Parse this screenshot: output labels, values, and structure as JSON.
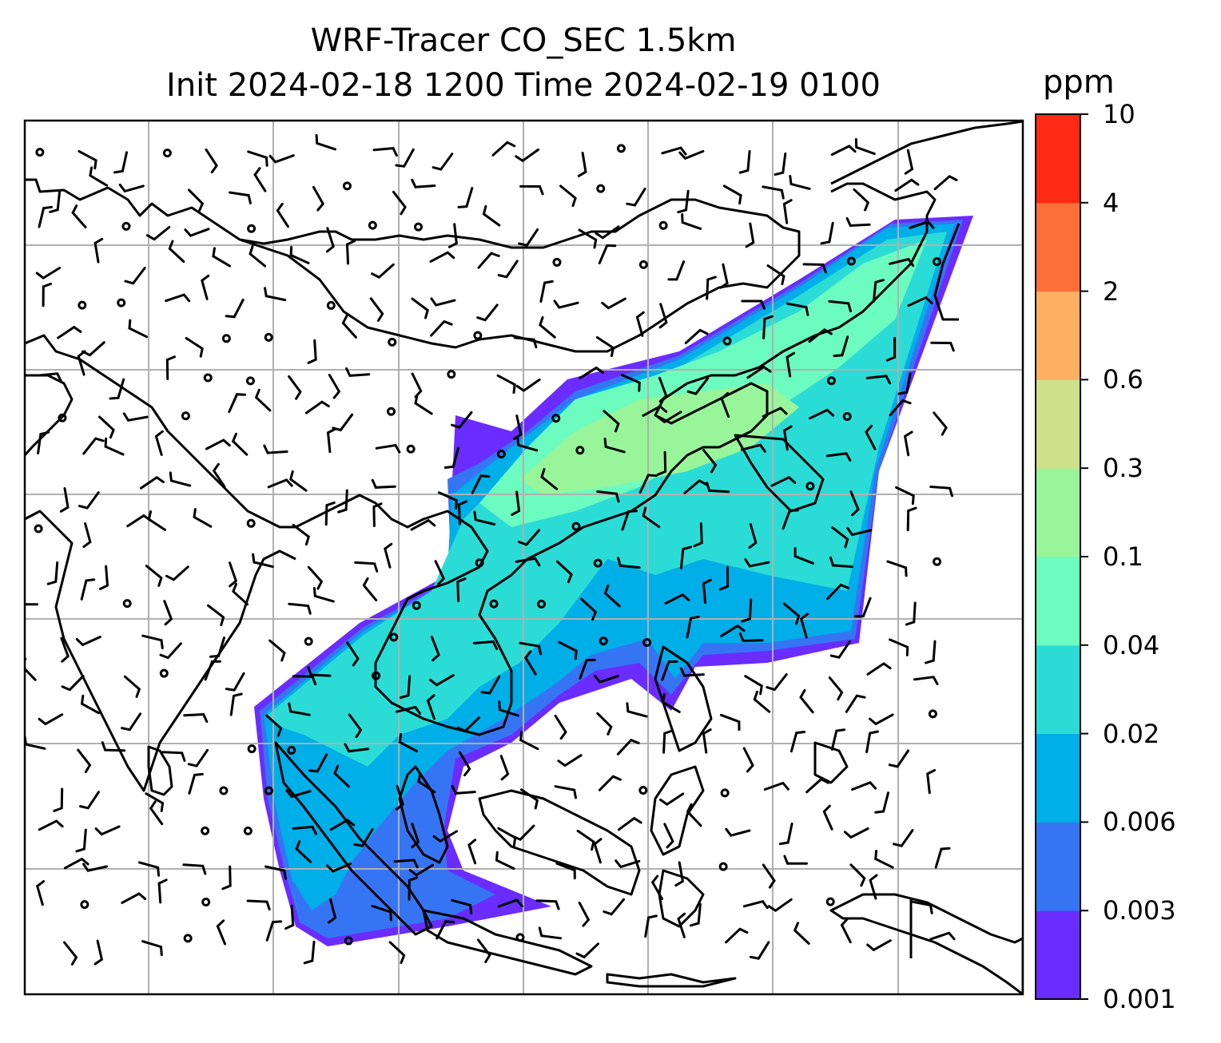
{
  "title": {
    "line1": "WRF-Tracer CO_SEC 1.5km",
    "line2": "Init 2024-02-18 1200 Time 2024-02-19 0100"
  },
  "colorbar": {
    "unit": "ppm",
    "levels": [
      "0.001",
      "0.003",
      "0.006",
      "0.02",
      "0.04",
      "0.1",
      "0.3",
      "0.6",
      "2",
      "4",
      "10"
    ],
    "colors": [
      "#6a2cff",
      "#3575f4",
      "#00aee8",
      "#2bdcd6",
      "#6cfcbf",
      "#99f59a",
      "#cfe08a",
      "#fdb062",
      "#ff6f3a",
      "#ff2a14"
    ]
  },
  "map": {
    "gridlines": true,
    "gridline_color": "#b0b0b0",
    "coastline_color": "#000000"
  }
}
